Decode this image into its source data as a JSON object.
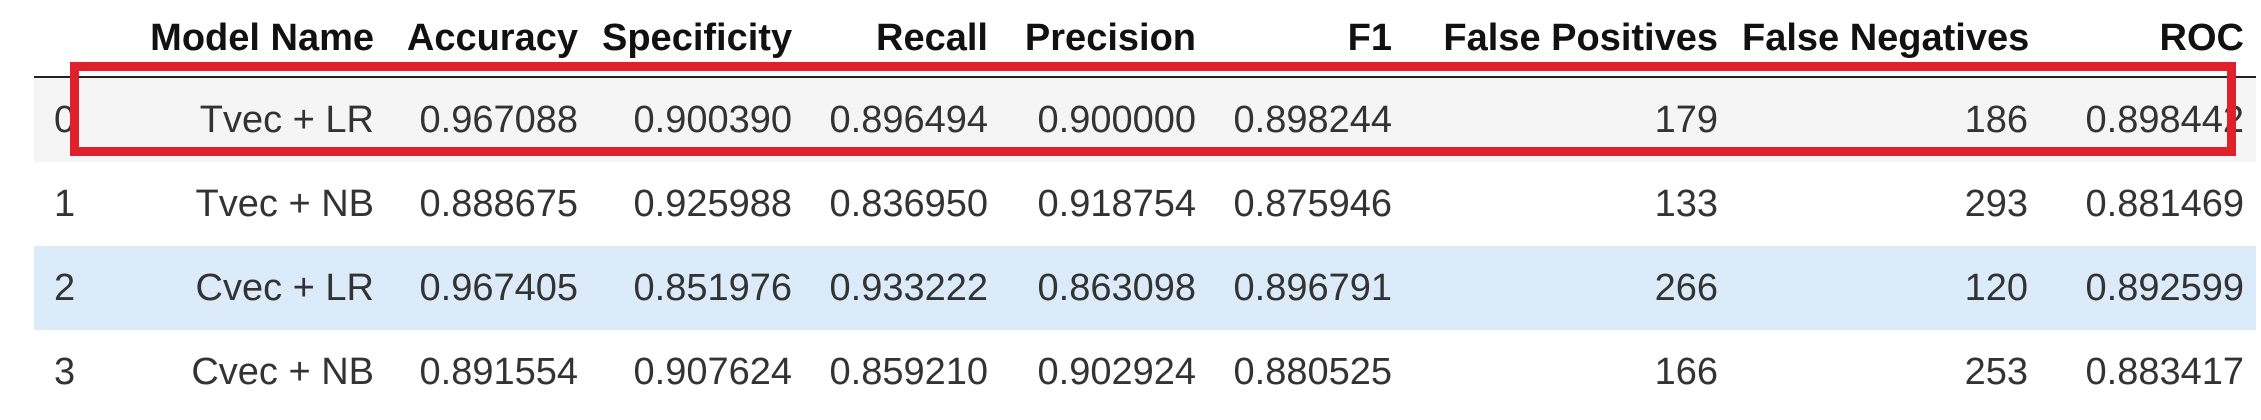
{
  "table": {
    "columns": [
      "",
      "Model Name",
      "Accuracy",
      "Specificity",
      "Recall",
      "Precision",
      "F1",
      "False Positives",
      "False Negatives",
      "ROC"
    ],
    "rows": [
      {
        "index": "0",
        "model": "Tvec + LR",
        "accuracy": "0.967088",
        "specificity": "0.900390",
        "recall": "0.896494",
        "precision": "0.900000",
        "f1": "0.898244",
        "fp": "179",
        "fn": "186",
        "roc": "0.898442"
      },
      {
        "index": "1",
        "model": "Tvec + NB",
        "accuracy": "0.888675",
        "specificity": "0.925988",
        "recall": "0.836950",
        "precision": "0.918754",
        "f1": "0.875946",
        "fp": "133",
        "fn": "293",
        "roc": "0.881469"
      },
      {
        "index": "2",
        "model": "Cvec + LR",
        "accuracy": "0.967405",
        "specificity": "0.851976",
        "recall": "0.933222",
        "precision": "0.863098",
        "f1": "0.896791",
        "fp": "266",
        "fn": "120",
        "roc": "0.892599"
      },
      {
        "index": "3",
        "model": "Cvec + NB",
        "accuracy": "0.891554",
        "specificity": "0.907624",
        "recall": "0.859210",
        "precision": "0.902924",
        "f1": "0.880525",
        "fp": "166",
        "fn": "253",
        "roc": "0.883417"
      }
    ]
  },
  "colors": {
    "highlight_border": "#e0202a",
    "hover_row": "#dcebf9",
    "striped_row": "#f5f5f5"
  }
}
